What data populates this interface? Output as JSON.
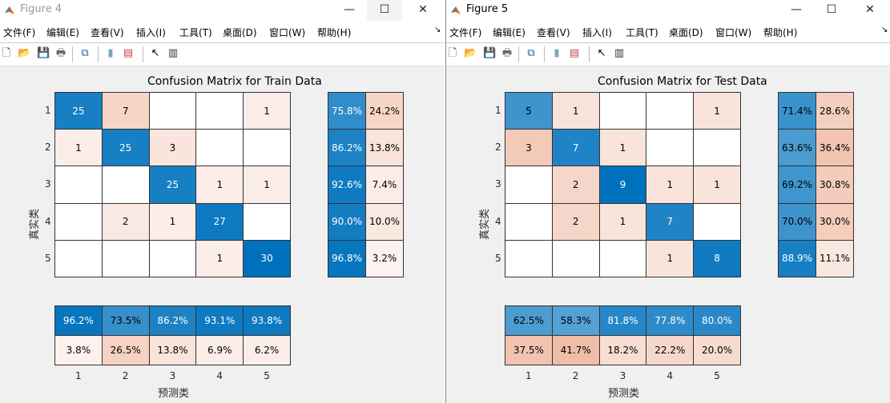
{
  "menus": [
    "文件(F)",
    "编辑(E)",
    "查看(V)",
    "插入(I)",
    "工具(T)",
    "桌面(D)",
    "窗口(W)",
    "帮助(H)"
  ],
  "toolbar_icons": [
    "new-file-icon",
    "open-folder-icon",
    "save-icon",
    "print-icon",
    "link-figure-icon",
    "colorbar-icon",
    "legend-icon",
    "pointer-icon",
    "property-inspector-icon"
  ],
  "colors": {
    "blue": "#0072BD",
    "orange": "#D95319"
  },
  "windows": [
    {
      "title": "Figure 4",
      "active": false,
      "chart_data": {
        "type": "heatmap",
        "title": "Confusion Matrix for Train Data",
        "xlabel": "预测类",
        "ylabel": "真实类",
        "classes": [
          "1",
          "2",
          "3",
          "4",
          "5"
        ],
        "matrix": [
          [
            25,
            7,
            0,
            0,
            1
          ],
          [
            1,
            25,
            3,
            0,
            0
          ],
          [
            0,
            0,
            25,
            1,
            1
          ],
          [
            0,
            2,
            1,
            27,
            0
          ],
          [
            0,
            0,
            0,
            1,
            30
          ]
        ],
        "row_summary": [
          [
            "75.8%",
            "24.2%"
          ],
          [
            "86.2%",
            "13.8%"
          ],
          [
            "92.6%",
            "7.4%"
          ],
          [
            "90.0%",
            "10.0%"
          ],
          [
            "96.8%",
            "3.2%"
          ]
        ],
        "column_summary": [
          [
            "96.2%",
            "73.5%",
            "86.2%",
            "93.1%",
            "93.8%"
          ],
          [
            "3.8%",
            "26.5%",
            "13.8%",
            "6.9%",
            "6.2%"
          ]
        ]
      }
    },
    {
      "title": "Figure 5",
      "active": true,
      "chart_data": {
        "type": "heatmap",
        "title": "Confusion Matrix for Test Data",
        "xlabel": "预测类",
        "ylabel": "真实类",
        "classes": [
          "1",
          "2",
          "3",
          "4",
          "5"
        ],
        "matrix": [
          [
            5,
            1,
            0,
            0,
            1
          ],
          [
            3,
            7,
            1,
            0,
            0
          ],
          [
            0,
            2,
            9,
            1,
            1
          ],
          [
            0,
            2,
            1,
            7,
            0
          ],
          [
            0,
            0,
            0,
            1,
            8
          ]
        ],
        "row_summary": [
          [
            "71.4%",
            "28.6%"
          ],
          [
            "63.6%",
            "36.4%"
          ],
          [
            "69.2%",
            "30.8%"
          ],
          [
            "70.0%",
            "30.0%"
          ],
          [
            "88.9%",
            "11.1%"
          ]
        ],
        "column_summary": [
          [
            "62.5%",
            "58.3%",
            "81.8%",
            "77.8%",
            "80.0%"
          ],
          [
            "37.5%",
            "41.7%",
            "18.2%",
            "22.2%",
            "20.0%"
          ]
        ]
      }
    }
  ]
}
